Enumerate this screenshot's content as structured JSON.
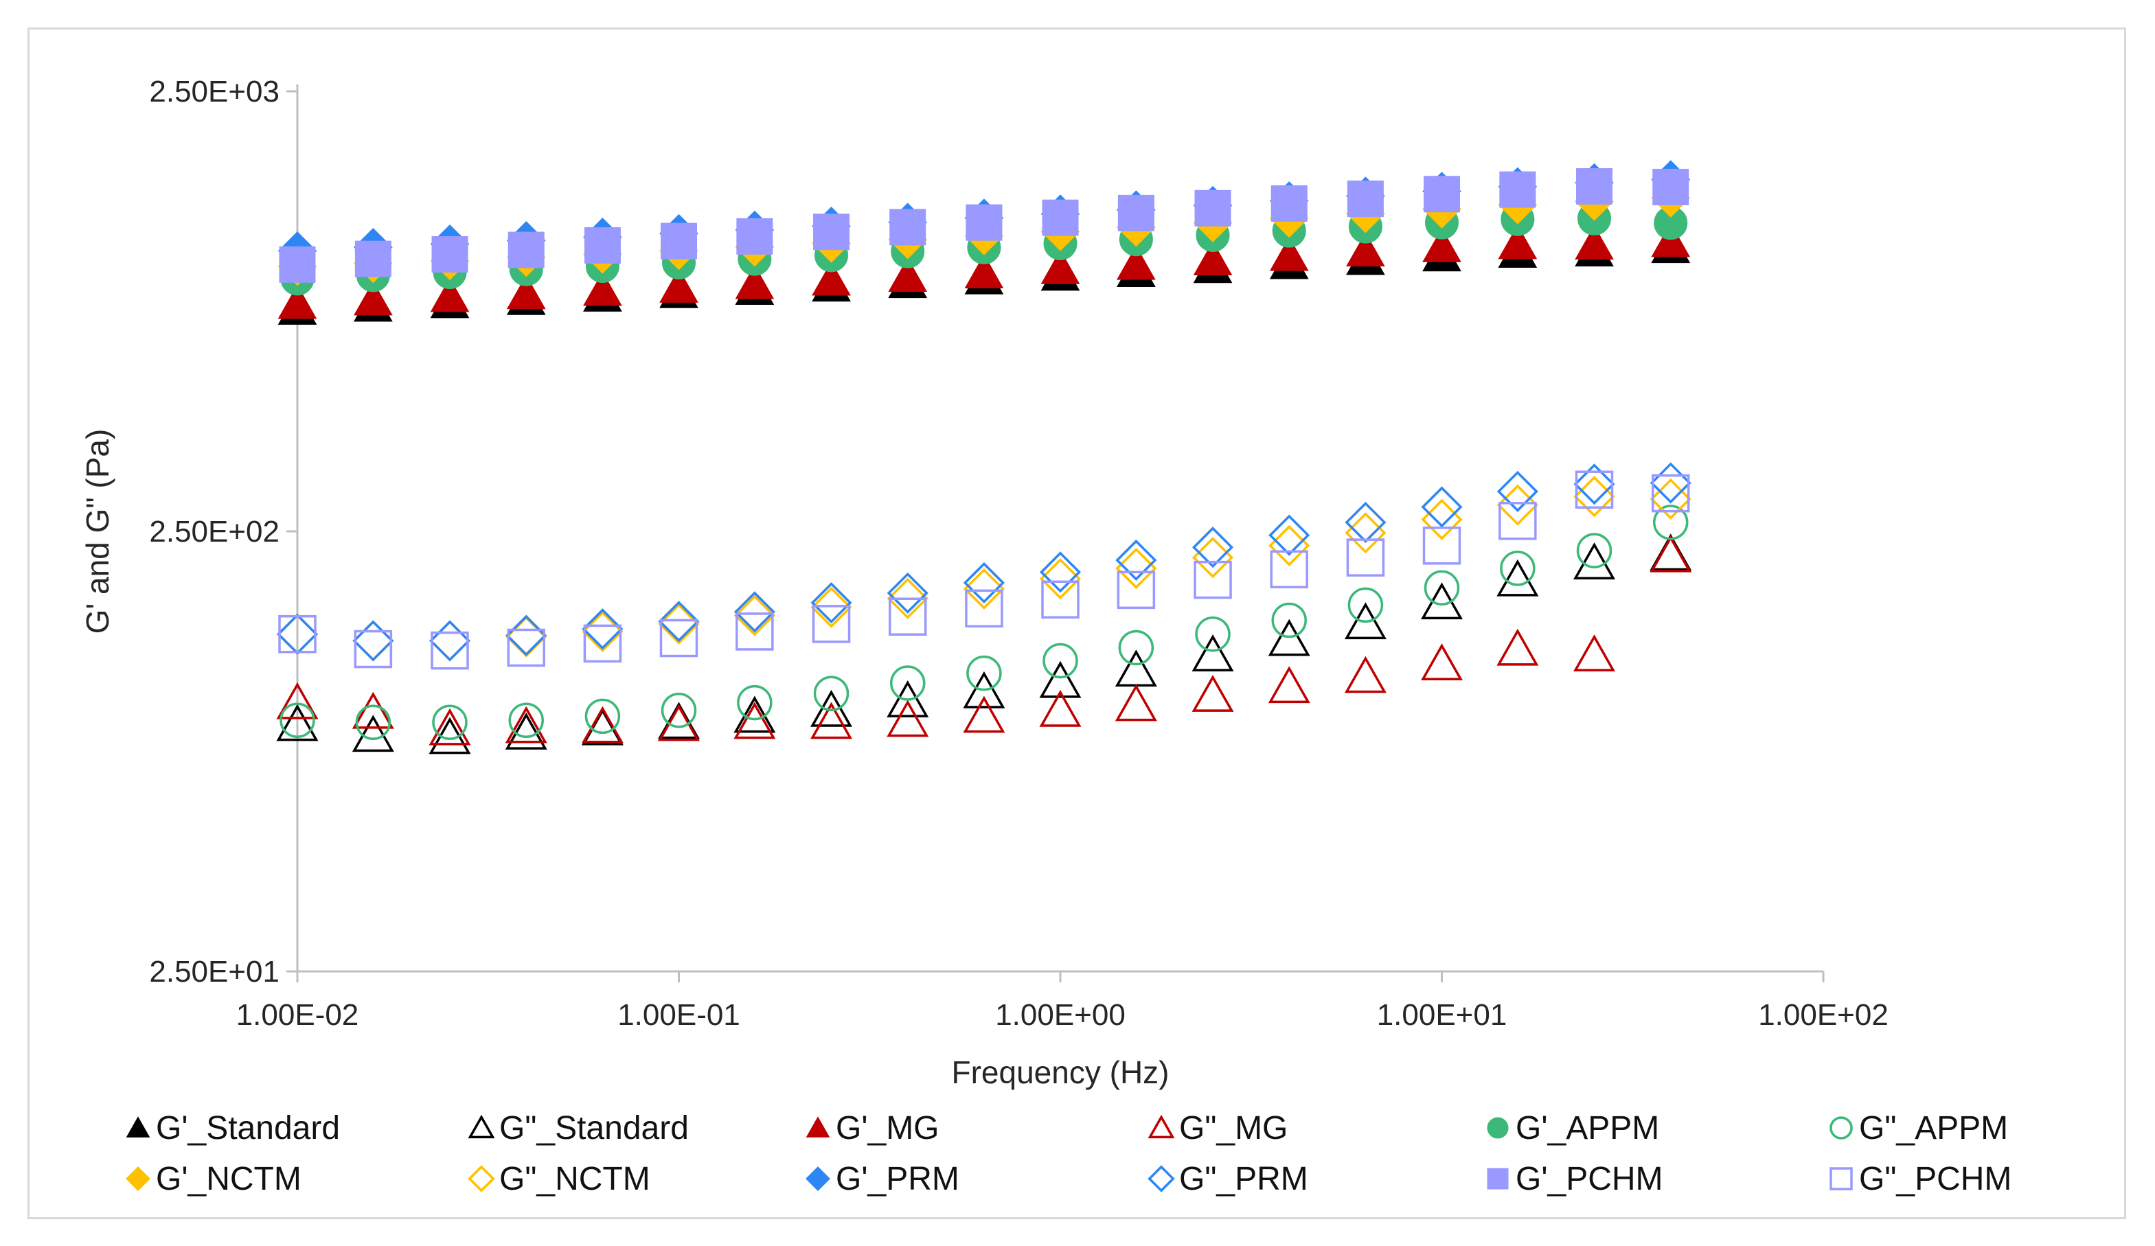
{
  "chart_data": {
    "type": "scatter",
    "x_scale": "log",
    "y_scale": "log",
    "xlabel": "Frequency (Hz)",
    "ylabel": "G' and G\" (Pa)",
    "xlim": [
      0.01,
      100
    ],
    "ylim": [
      25,
      2500
    ],
    "x_ticks": [
      {
        "value": 0.01,
        "label": "1.00E-02"
      },
      {
        "value": 0.1,
        "label": "1.00E-01"
      },
      {
        "value": 1,
        "label": "1.00E+00"
      },
      {
        "value": 10,
        "label": "1.00E+01"
      },
      {
        "value": 100,
        "label": "1.00E+02"
      }
    ],
    "y_ticks": [
      {
        "value": 2500,
        "label": "2.50E+03"
      },
      {
        "value": 250,
        "label": "2.50E+02"
      },
      {
        "value": 25,
        "label": "2.50E+01"
      }
    ],
    "legend_position": "bottom",
    "x": [
      0.01,
      0.0158,
      0.0251,
      0.0398,
      0.0631,
      0.1,
      0.158,
      0.251,
      0.398,
      0.631,
      1,
      1.58,
      2.51,
      3.98,
      6.31,
      10,
      15.8,
      25.1,
      39.8
    ],
    "series": [
      {
        "name": "G'_Standard",
        "marker": "triangle",
        "filled": true,
        "color": "#000000",
        "values": [
          800,
          813,
          828,
          842,
          857,
          873,
          888,
          903,
          920,
          938,
          956,
          975,
          995,
          1016,
          1038,
          1058,
          1078,
          1085,
          1105
        ]
      },
      {
        "name": "G\"_Standard",
        "marker": "triangle",
        "filled": false,
        "color": "#000000",
        "values": [
          91,
          86,
          85,
          87,
          89,
          92,
          95,
          98,
          103,
          108,
          114,
          121,
          131,
          142,
          155,
          172,
          194,
          212,
          222
        ]
      },
      {
        "name": "G'_MG",
        "marker": "triangle",
        "filled": true,
        "color": "#c00000",
        "values": [
          825,
          840,
          855,
          868,
          883,
          898,
          915,
          932,
          950,
          968,
          990,
          1012,
          1036,
          1060,
          1085,
          1110,
          1128,
          1125,
          1140
        ]
      },
      {
        "name": "G\"_MG",
        "marker": "triangle",
        "filled": false,
        "color": "#c00000",
        "values": [
          102,
          97,
          89,
          90,
          90,
          91,
          92,
          92,
          93,
          95,
          98,
          101,
          106,
          111,
          117,
          125,
          135,
          131,
          220
        ]
      },
      {
        "name": "G'_APPM",
        "marker": "circle",
        "filled": true,
        "color": "#3cb878",
        "values": [
          938,
          955,
          970,
          985,
          1002,
          1020,
          1040,
          1060,
          1082,
          1104,
          1128,
          1152,
          1178,
          1205,
          1232,
          1258,
          1280,
          1285,
          1255
        ]
      },
      {
        "name": "G\"_APPM",
        "marker": "circle",
        "filled": false,
        "color": "#3cb878",
        "values": [
          93,
          92,
          92,
          93,
          95,
          98,
          102,
          107,
          113,
          119,
          127,
          136,
          146,
          157,
          170,
          186,
          206,
          226,
          262
        ]
      },
      {
        "name": "G'_NCTM",
        "marker": "diamond",
        "filled": true,
        "color": "#ffc000",
        "values": [
          1000,
          1015,
          1030,
          1048,
          1066,
          1086,
          1106,
          1128,
          1150,
          1174,
          1200,
          1227,
          1256,
          1286,
          1318,
          1350,
          1380,
          1405,
          1430
        ]
      },
      {
        "name": "G\"_NCTM",
        "marker": "diamond",
        "filled": false,
        "color": "#ffc000",
        "values": [
          146,
          141,
          141,
          144,
          148,
          154,
          161,
          168,
          176,
          185,
          195,
          206,
          218,
          232,
          248,
          266,
          287,
          300,
          296
        ]
      },
      {
        "name": "G'_PRM",
        "marker": "diamond",
        "filled": true,
        "color": "#2e86f5",
        "values": [
          1085,
          1105,
          1125,
          1145,
          1166,
          1188,
          1210,
          1235,
          1260,
          1288,
          1316,
          1345,
          1376,
          1410,
          1445,
          1482,
          1518,
          1550,
          1575
        ]
      },
      {
        "name": "G\"_PRM",
        "marker": "diamond",
        "filled": false,
        "color": "#2e86f5",
        "values": [
          146,
          141,
          141,
          145,
          150,
          156,
          164,
          172,
          181,
          191,
          202,
          215,
          230,
          245,
          262,
          284,
          308,
          320,
          322
        ]
      },
      {
        "name": "G'_PCHM",
        "marker": "square",
        "filled": true,
        "color": "#9999ff",
        "values": [
          1010,
          1040,
          1065,
          1090,
          1116,
          1142,
          1170,
          1198,
          1228,
          1258,
          1290,
          1322,
          1356,
          1390,
          1425,
          1460,
          1495,
          1520,
          1515
        ]
      },
      {
        "name": "G\"_PCHM",
        "marker": "square",
        "filled": false,
        "color": "#9999ff",
        "values": [
          146,
          135,
          134,
          136,
          139,
          143,
          148,
          154,
          160,
          167,
          175,
          184,
          194,
          205,
          218,
          232,
          264,
          311,
          305
        ]
      }
    ]
  }
}
